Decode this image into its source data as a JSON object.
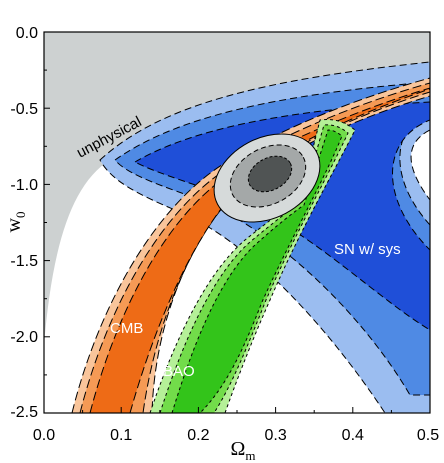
{
  "chart_data": {
    "type": "contour",
    "title": "",
    "xlabel": "Ωm",
    "ylabel": "w0",
    "xlim": [
      0.0,
      0.5
    ],
    "ylim": [
      -2.5,
      0.0
    ],
    "x_ticks": [
      "0.0",
      "0.1",
      "0.2",
      "0.3",
      "0.4",
      "0.5"
    ],
    "y_ticks": [
      "0.0",
      "-0.5",
      "-1.0",
      "-1.5",
      "-2.0",
      "-2.5"
    ],
    "grid": false,
    "regions": [
      {
        "name": "unphysical",
        "color": "#cdd1d1"
      },
      {
        "name": "SN w/ sys",
        "colors": [
          "#9bbdf0",
          "#4f8ae4",
          "#1f4fd8"
        ]
      },
      {
        "name": "CMB",
        "colors": [
          "#f9c59b",
          "#f59a55",
          "#ee6b16"
        ]
      },
      {
        "name": "BAO",
        "colors": [
          "#b5f098",
          "#72dc4a",
          "#33c41a"
        ]
      },
      {
        "name": "combined",
        "colors": [
          "#d6dada",
          "#a4a8a8",
          "#505454"
        ]
      }
    ],
    "combined_best_fit": {
      "x": 0.285,
      "y": -0.98
    },
    "annotations": [
      {
        "text": "unphysical",
        "x": 0.05,
        "y": -0.93
      },
      {
        "text": "SN w/ sys",
        "x": 0.39,
        "y": -1.45
      },
      {
        "text": "CMB",
        "x": 0.09,
        "y": -1.98
      },
      {
        "text": "BAO",
        "x": 0.155,
        "y": -2.27
      }
    ]
  }
}
